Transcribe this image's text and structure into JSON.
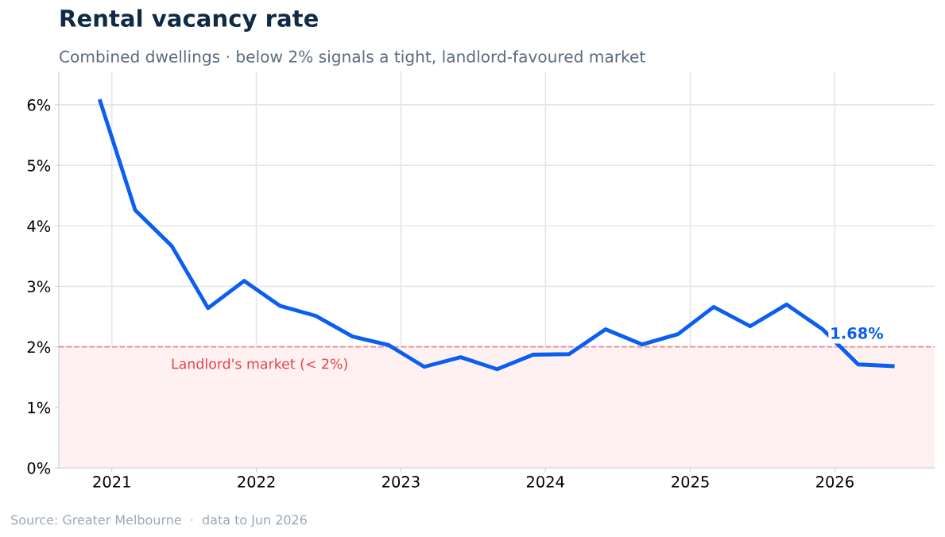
{
  "chart_data": {
    "type": "line",
    "title": "Rental vacancy rate",
    "subtitle": "Combined dwellings · below 2% signals a tight, landlord-favoured market",
    "x": [
      "2020-12",
      "2021-03",
      "2021-06",
      "2021-09",
      "2021-12",
      "2022-03",
      "2022-06",
      "2022-09",
      "2022-12",
      "2023-03",
      "2023-06",
      "2023-09",
      "2023-12",
      "2024-03",
      "2024-06",
      "2024-09",
      "2024-12",
      "2025-03",
      "2025-06",
      "2025-09",
      "2025-12",
      "2026-03",
      "2026-06"
    ],
    "series": [
      {
        "color": "#0a5ef0",
        "values": [
          6.09,
          4.26,
          3.67,
          2.64,
          3.09,
          2.68,
          2.51,
          2.17,
          2.03,
          1.67,
          1.83,
          1.63,
          1.87,
          1.88,
          2.29,
          2.04,
          2.21,
          2.66,
          2.34,
          2.7,
          2.29,
          1.71,
          1.68
        ]
      }
    ],
    "xlim": [
      "2020-08-20",
      "2026-09-10"
    ],
    "xticks": [
      "2021",
      "2022",
      "2023",
      "2024",
      "2025",
      "2026"
    ],
    "ylim": [
      0,
      6.55
    ],
    "yticks": [
      {
        "value": 0,
        "label": "0%"
      },
      {
        "value": 1,
        "label": "1%"
      },
      {
        "value": 2,
        "label": "2%"
      },
      {
        "value": 3,
        "label": "3%"
      },
      {
        "value": 4,
        "label": "4%"
      },
      {
        "value": 5,
        "label": "5%"
      },
      {
        "value": 6,
        "label": "6%"
      }
    ],
    "ref_lines": [
      {
        "axis": "y",
        "value": 2,
        "color": "#e98a8a",
        "line_style": "dashed"
      }
    ],
    "bands": [
      {
        "axis": "y",
        "from": 0,
        "to": 2,
        "label": "Landlord's market (< 2%)",
        "color": "#fff1f1"
      }
    ],
    "annotations": [
      {
        "text": "1.68%",
        "x": "2026-06",
        "y": 1.68
      },
      "Source: Greater Melbourne  ·  data to Jun 2026"
    ],
    "grid": true,
    "legend": false,
    "marker": "none",
    "line_style": "solid"
  }
}
